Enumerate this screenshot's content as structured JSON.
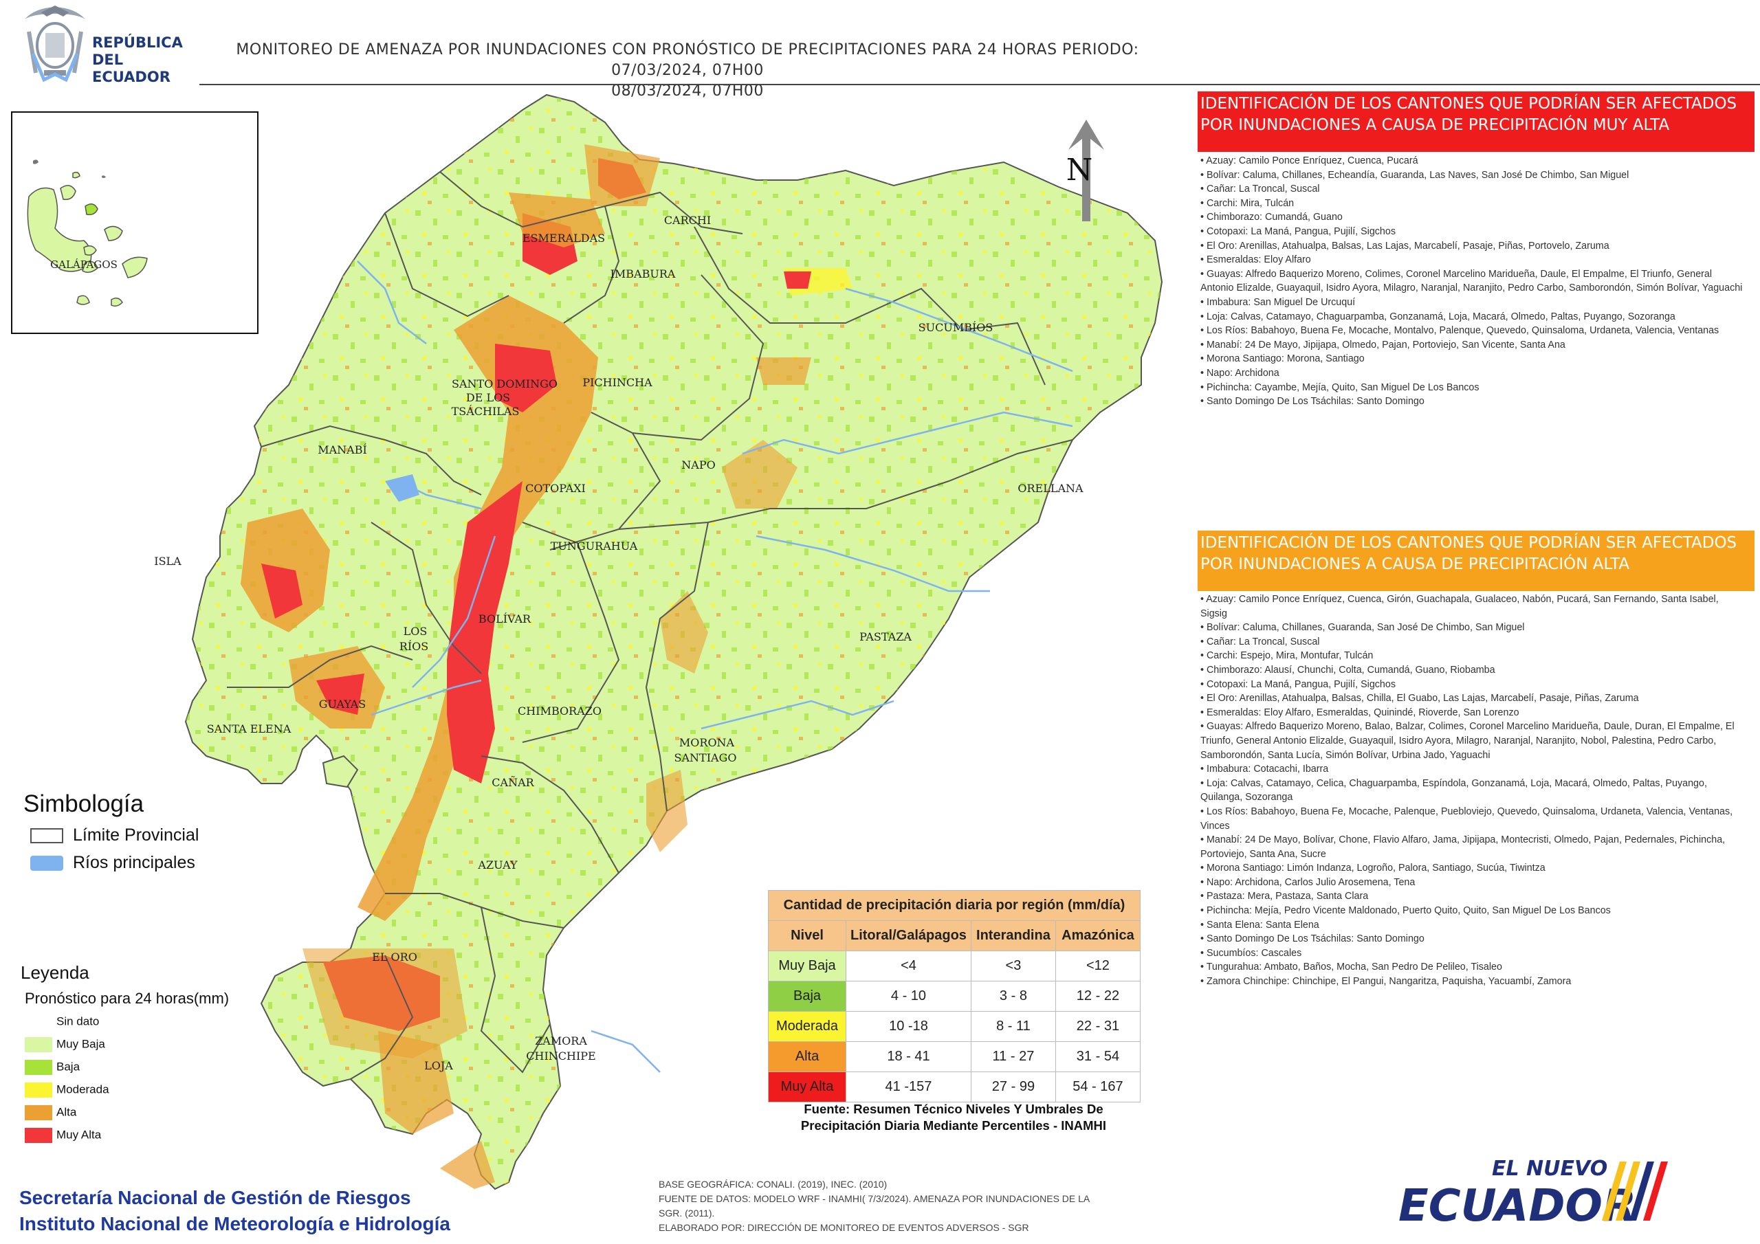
{
  "header": {
    "logo_text_line1": "REPÚBLICA",
    "logo_text_line2": "DEL ECUADOR",
    "title_line1": "MONITOREO DE AMENAZA POR INUNDACIONES  CON PRONÓSTICO DE  PRECIPITACIONES PARA 24 HORAS  PERIODO: 07/03/2024, 07H00",
    "title_line2": "08/03/2024, 07H00"
  },
  "map": {
    "inset_label": "GALÁPAGOS",
    "provinces": [
      "ESMERALDAS",
      "CARCHI",
      "IMBABURA",
      "SUCUMBÍOS",
      "SANTO DOMINGO",
      "DE LOS",
      "TSÁCHILAS",
      "PICHINCHA",
      "MANABÍ",
      "NAPO",
      "ORELLANA",
      "COTOPAXI",
      "ISLA",
      "TUNGURAHUA",
      "BOLÍVAR",
      "LOS",
      "RÍOS",
      "PASTAZA",
      "GUAYAS",
      "CHIMBORAZO",
      "SANTA ELENA",
      "MORONA",
      "SANTIAGO",
      "CAÑAR",
      "AZUAY",
      "EL ORO",
      "ZAMORA",
      "CHINCHIPE",
      "LOJA"
    ],
    "north_label": "N"
  },
  "panels": {
    "very_high_title": "IDENTIFICACIÓN DE LOS CANTONES QUE PODRÍAN SER AFECTADOS POR INUNDACIONES  A CAUSA DE PRECIPITACIÓN MUY ALTA",
    "very_high_items": [
      "Azuay: Camilo Ponce Enríquez, Cuenca, Pucará",
      "Bolívar: Caluma, Chillanes, Echeandía, Guaranda, Las Naves, San José De Chimbo, San Miguel",
      "Cañar: La Troncal, Suscal",
      "Carchi: Mira, Tulcán",
      "Chimborazo: Cumandá, Guano",
      "Cotopaxi: La Maná, Pangua, Pujilí, Sigchos",
      "El Oro: Arenillas, Atahualpa, Balsas, Las Lajas, Marcabelí, Pasaje, Piñas, Portovelo, Zaruma",
      "Esmeraldas: Eloy Alfaro",
      "Guayas: Alfredo Baquerizo Moreno, Colimes, Coronel Marcelino Maridueña, Daule, El Empalme, El Triunfo, General Antonio Elizalde, Guayaquil, Isidro Ayora, Milagro, Naranjal, Naranjito, Pedro Carbo, Samborondón, Simón Bolívar, Yaguachi",
      "Imbabura: San Miguel De Urcuquí",
      "Loja: Calvas, Catamayo, Chaguarpamba, Gonzanamá, Loja, Macará, Olmedo, Paltas, Puyango, Sozoranga",
      "Los Ríos: Babahoyo, Buena Fe, Mocache, Montalvo, Palenque, Quevedo, Quinsaloma, Urdaneta, Valencia, Ventanas",
      "Manabí: 24 De Mayo, Jipijapa, Olmedo, Pajan, Portoviejo, San Vicente, Santa Ana",
      "Morona Santiago: Morona, Santiago",
      "Napo: Archidona",
      "Pichincha: Cayambe, Mejía, Quito, San Miguel De Los Bancos",
      "Santo Domingo De Los Tsáchilas: Santo Domingo"
    ],
    "high_title": "IDENTIFICACIÓN DE LOS CANTONES QUE  PODRÍAN SER AFECTADOS POR INUNDACIONES  A CAUSA DE PRECIPITACIÓN  ALTA",
    "high_items": [
      "Azuay: Camilo Ponce Enríquez, Cuenca, Girón, Guachapala, Gualaceo, Nabón, Pucará, San Fernando, Santa Isabel, Sigsig",
      "Bolívar: Caluma, Chillanes, Guaranda, San José De Chimbo, San Miguel",
      "Cañar: La Troncal, Suscal",
      "Carchi: Espejo, Mira, Montufar, Tulcán",
      "Chimborazo: Alausí, Chunchi, Colta, Cumandá, Guano, Riobamba",
      "Cotopaxi: La Maná, Pangua, Pujilí, Sigchos",
      "El Oro: Arenillas, Atahualpa, Balsas, Chilla, El Guabo, Las Lajas, Marcabelí, Pasaje, Piñas, Zaruma",
      "Esmeraldas: Eloy Alfaro, Esmeraldas, Quinindé, Rioverde, San Lorenzo",
      "Guayas: Alfredo Baquerizo Moreno, Balao, Balzar, Colimes, Coronel Marcelino Maridueña, Daule, Duran, El Empalme, El Triunfo, General Antonio Elizalde, Guayaquil, Isidro Ayora, Milagro, Naranjal, Naranjito, Nobol, Palestina, Pedro Carbo, Samborondón, Santa Lucía, Simón Bolívar, Urbina Jado, Yaguachi",
      "Imbabura: Cotacachi, Ibarra",
      "Loja: Calvas, Catamayo, Celica, Chaguarpamba, Espíndola, Gonzanamá, Loja, Macará, Olmedo, Paltas, Puyango, Quilanga, Sozoranga",
      "Los Ríos: Babahoyo, Buena Fe, Mocache, Palenque, Puebloviejo, Quevedo, Quinsaloma, Urdaneta, Valencia, Ventanas, Vinces",
      "Manabí: 24 De Mayo, Bolívar, Chone, Flavio Alfaro, Jama, Jipijapa, Montecristi, Olmedo, Pajan, Pedernales, Pichincha, Portoviejo, Santa Ana, Sucre",
      "Morona Santiago: Limón Indanza, Logroño, Palora, Santiago, Sucúa, Tiwintza",
      "Napo: Archidona, Carlos Julio Arosemena, Tena",
      "Pastaza: Mera, Pastaza, Santa Clara",
      "Pichincha: Mejía, Pedro Vicente Maldonado, Puerto Quito, Quito, San Miguel De Los Bancos",
      "Santa Elena: Santa Elena",
      "Santo Domingo De Los Tsáchilas: Santo Domingo",
      "Sucumbíos: Cascales",
      "Tungurahua: Ambato, Baños, Mocha, San Pedro De Pelileo, Tisaleo",
      "Zamora Chinchipe: Chinchipe, El Pangui, Nangaritza, Paquisha, Yacuambí, Zamora"
    ]
  },
  "simbologia": {
    "title": "Simbología",
    "items": [
      {
        "label": "Límite Provincial",
        "color": "#ffffff",
        "border": "#555555"
      },
      {
        "label": "Ríos principales",
        "color": "#7fb3f0",
        "border": "#7fb3f0"
      }
    ]
  },
  "leyenda": {
    "title": "Leyenda",
    "subtitle": "Pronóstico para 24 horas(mm)",
    "items": [
      {
        "label": "Sin dato",
        "color": "#ffffff"
      },
      {
        "label": "Muy Baja",
        "color": "#d9f7a2"
      },
      {
        "label": "Baja",
        "color": "#a6e23a"
      },
      {
        "label": "Moderada",
        "color": "#fbf531"
      },
      {
        "label": "Alta",
        "color": "#eba033"
      },
      {
        "label": "Muy Alta",
        "color": "#f1373a"
      }
    ]
  },
  "table": {
    "title": "Cantidad de precipitación diaria por región (mm/día)",
    "headers": [
      "Nivel",
      "Litoral/Galápagos",
      "Interandina",
      "Amazónica"
    ],
    "rows": [
      {
        "level": "Muy Baja",
        "color": "#d9f7a2",
        "litoral": "<4",
        "interandina": "<3",
        "amazonica": "<12"
      },
      {
        "level": "Baja",
        "color": "#8fcf45",
        "litoral": "4 - 10",
        "interandina": "3 - 8",
        "amazonica": "12 - 22"
      },
      {
        "level": "Moderada",
        "color": "#fbf531",
        "litoral": "10 -18",
        "interandina": "8 - 11",
        "amazonica": "22 - 31"
      },
      {
        "level": "Alta",
        "color": "#f59a2c",
        "litoral": "18 - 41",
        "interandina": "11 - 27",
        "amazonica": "31 - 54"
      },
      {
        "level": "Muy Alta",
        "color": "#ee1c1c",
        "litoral": "41 -157",
        "interandina": "27 - 99",
        "amazonica": "54 - 167"
      }
    ],
    "source_line1": "Fuente: Resumen Técnico Niveles Y Umbrales De",
    "source_line2": "Precipitación Diaria Mediante Percentiles - INAMHI"
  },
  "footer": {
    "org_line1": "Secretaría Nacional de Gestión de Riesgos",
    "org_line2": "Instituto Nacional de Meteorología e Hidrología",
    "base_line1": "BASE GEOGRÁFICA: CONALI. (2019), INEC. (2010)",
    "base_line2": "FUENTE DE DATOS: MODELO WRF - INAMHI( 7/3/2024).  AMENAZA POR INUNDACIONES DE LA",
    "base_line3": "SGR. (2011).",
    "base_line4": "ELABORADO POR: DIRECCIÓN DE MONITOREO DE EVENTOS ADVERSOS - SGR",
    "brand_small": "EL NUEVO",
    "brand_big": "ECUADOR"
  },
  "colors": {
    "muy_baja": "#d9f7a2",
    "baja": "#a6e23a",
    "moderada": "#fbf531",
    "alta": "#eba033",
    "muy_alta": "#f1373a",
    "river": "#7fb3f0",
    "org_blue": "#1f3a9e"
  }
}
